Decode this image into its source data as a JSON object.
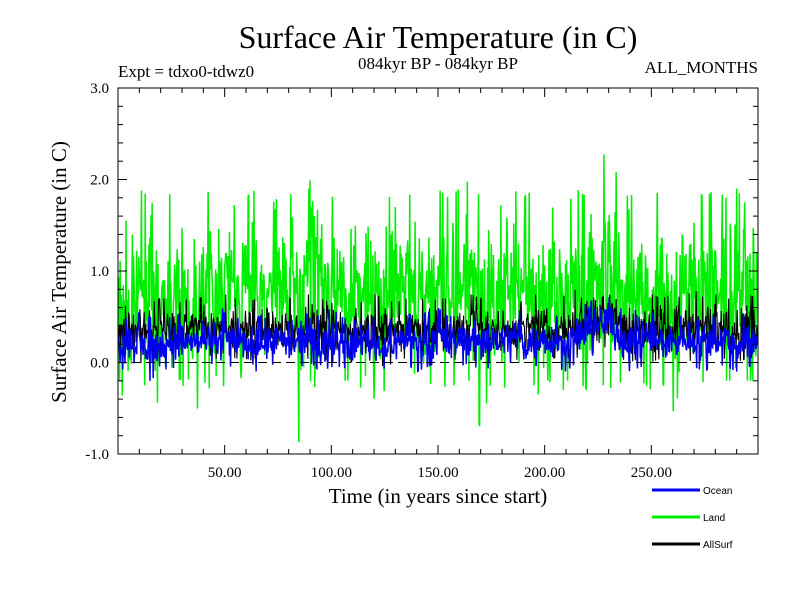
{
  "chart_data": {
    "type": "line",
    "title": "Surface Air Temperature (in C)",
    "subtitle_left": "Expt = tdxo0-tdwz0",
    "subtitle_center": "084kyr BP - 084kyr BP",
    "subtitle_right": "ALL_MONTHS",
    "xlabel": "Time (in years since start)",
    "ylabel": "Surface Air Temperature (in C)",
    "xlim": [
      0,
      300
    ],
    "ylim": [
      -1.0,
      3.0
    ],
    "xticks": [
      50,
      100,
      150,
      200,
      250
    ],
    "xtick_labels": [
      "50.00",
      "100.00",
      "150.00",
      "200.00",
      "250.00"
    ],
    "yticks": [
      -1.0,
      0.0,
      1.0,
      2.0,
      3.0
    ],
    "ytick_labels": [
      "-1.0",
      "0.0",
      "1.0",
      "2.0",
      "3.0"
    ],
    "reference_line": 0.0,
    "grid": false,
    "legend_position": "bottom-right",
    "series": [
      {
        "name": "Land",
        "color": "#00ee00",
        "x": [
          0,
          5,
          10,
          15,
          20,
          25,
          30,
          35,
          40,
          45,
          50,
          55,
          60,
          65,
          70,
          75,
          80,
          85,
          90,
          95,
          100,
          105,
          110,
          115,
          120,
          125,
          130,
          135,
          140,
          145,
          150,
          155,
          160,
          165,
          170,
          175,
          180,
          185,
          190,
          195,
          200,
          205,
          210,
          215,
          220,
          225,
          230,
          235,
          240,
          245,
          250,
          255,
          260,
          265,
          270,
          275,
          280,
          285,
          290,
          295,
          300
        ],
        "min": [
          -0.1,
          -0.75,
          -0.2,
          -0.3,
          -0.5,
          -0.15,
          -0.2,
          -0.75,
          -0.2,
          -0.35,
          -0.25,
          -0.2,
          -0.15,
          -0.2,
          -0.15,
          -0.2,
          -0.3,
          -0.9,
          -0.2,
          -0.35,
          -0.2,
          -0.2,
          -0.2,
          -0.3,
          -0.55,
          -0.3,
          -0.2,
          -0.2,
          -0.3,
          -0.25,
          -0.2,
          -0.3,
          -0.2,
          -0.2,
          -0.75,
          -0.2,
          -0.3,
          -0.2,
          -0.2,
          -0.25,
          -0.5,
          -0.6,
          -0.2,
          -0.2,
          -0.3,
          -0.2,
          -0.3,
          -0.2,
          -0.4,
          -0.2,
          -0.3,
          -0.2,
          -0.55,
          -0.2,
          -0.3,
          -0.2,
          -0.65,
          -0.2,
          -0.2,
          -0.2,
          -0.2
        ],
        "max": [
          1.4,
          1.6,
          1.9,
          1.8,
          1.5,
          1.9,
          1.7,
          1.8,
          2.0,
          1.7,
          1.9,
          1.7,
          1.8,
          1.9,
          1.7,
          1.8,
          1.8,
          2.0,
          2.7,
          1.9,
          1.8,
          1.9,
          1.7,
          1.8,
          2.0,
          1.9,
          1.7,
          1.8,
          1.9,
          1.8,
          1.9,
          1.8,
          1.9,
          2.0,
          1.8,
          1.9,
          1.7,
          1.9,
          1.8,
          1.9,
          2.0,
          1.8,
          1.7,
          1.9,
          1.8,
          2.0,
          2.5,
          1.9,
          1.8,
          2.0,
          1.8,
          1.9,
          1.7,
          1.8,
          1.9,
          1.8,
          1.9,
          1.8,
          1.9,
          1.7,
          1.8
        ]
      },
      {
        "name": "AllSurf",
        "color": "#000000",
        "x": [
          0,
          5,
          10,
          15,
          20,
          25,
          30,
          35,
          40,
          45,
          50,
          55,
          60,
          65,
          70,
          75,
          80,
          85,
          90,
          95,
          100,
          105,
          110,
          115,
          120,
          125,
          130,
          135,
          140,
          145,
          150,
          155,
          160,
          165,
          170,
          175,
          180,
          185,
          190,
          195,
          200,
          205,
          210,
          215,
          220,
          225,
          230,
          235,
          240,
          245,
          250,
          255,
          260,
          265,
          270,
          275,
          280,
          285,
          290,
          295,
          300
        ],
        "min": [
          0.0,
          0.05,
          0.0,
          -0.05,
          0.05,
          0.0,
          0.05,
          0.0,
          0.05,
          0.05,
          0.0,
          0.05,
          0.0,
          0.05,
          0.05,
          0.0,
          0.05,
          0.0,
          0.05,
          0.05,
          0.0,
          0.05,
          0.0,
          0.05,
          0.0,
          -0.05,
          0.0,
          0.05,
          0.0,
          0.05,
          0.05,
          0.0,
          0.05,
          0.0,
          0.05,
          0.0,
          0.05,
          0.05,
          0.0,
          0.05,
          0.0,
          0.05,
          0.0,
          0.05,
          0.1,
          0.1,
          0.2,
          0.05,
          0.0,
          0.05,
          0.0,
          0.05,
          0.0,
          0.05,
          0.0,
          0.05,
          0.0,
          0.05,
          0.0,
          0.05,
          0.05
        ],
        "max": [
          0.55,
          0.65,
          0.75,
          0.65,
          0.7,
          0.7,
          0.65,
          0.75,
          0.7,
          0.65,
          0.75,
          0.7,
          0.65,
          0.7,
          0.75,
          0.65,
          0.7,
          0.7,
          0.75,
          0.7,
          0.65,
          0.7,
          0.7,
          0.65,
          0.75,
          0.7,
          0.65,
          0.7,
          0.75,
          0.65,
          0.7,
          0.7,
          0.65,
          0.75,
          0.7,
          0.65,
          0.7,
          0.7,
          0.65,
          0.75,
          0.7,
          0.65,
          0.75,
          0.8,
          0.85,
          0.9,
          1.1,
          0.85,
          0.75,
          0.7,
          0.75,
          0.7,
          0.75,
          0.7,
          0.8,
          0.7,
          0.75,
          0.7,
          0.7,
          0.75,
          0.7
        ]
      },
      {
        "name": "Ocean",
        "color": "#0000ee",
        "x": [
          0,
          5,
          10,
          15,
          20,
          25,
          30,
          35,
          40,
          45,
          50,
          55,
          60,
          65,
          70,
          75,
          80,
          85,
          90,
          95,
          100,
          105,
          110,
          115,
          120,
          125,
          130,
          135,
          140,
          145,
          150,
          155,
          160,
          165,
          170,
          175,
          180,
          185,
          190,
          195,
          200,
          205,
          210,
          215,
          220,
          225,
          230,
          235,
          240,
          245,
          250,
          255,
          260,
          265,
          270,
          275,
          280,
          285,
          290,
          295,
          300
        ],
        "min": [
          -0.1,
          -0.05,
          -0.15,
          -0.2,
          -0.1,
          -0.05,
          -0.1,
          -0.05,
          0.0,
          -0.05,
          -0.1,
          0.0,
          -0.05,
          -0.1,
          -0.05,
          0.0,
          -0.1,
          -0.05,
          0.0,
          -0.1,
          -0.05,
          -0.05,
          -0.1,
          0.0,
          -0.1,
          -0.15,
          -0.05,
          0.0,
          -0.1,
          -0.05,
          0.0,
          -0.1,
          -0.05,
          0.0,
          -0.1,
          -0.05,
          0.0,
          0.0,
          -0.1,
          -0.05,
          0.0,
          -0.05,
          -0.1,
          0.0,
          0.05,
          0.1,
          0.15,
          0.0,
          -0.1,
          -0.05,
          0.0,
          -0.05,
          -0.1,
          0.0,
          -0.05,
          -0.1,
          0.0,
          -0.05,
          -0.1,
          -0.05,
          0.0
        ],
        "max": [
          0.45,
          0.5,
          0.55,
          0.5,
          0.45,
          0.5,
          0.55,
          0.5,
          0.45,
          0.55,
          0.6,
          0.5,
          0.45,
          0.5,
          0.55,
          0.5,
          0.45,
          0.5,
          0.55,
          0.5,
          0.6,
          0.5,
          0.45,
          0.55,
          0.5,
          0.45,
          0.5,
          0.55,
          0.5,
          0.55,
          0.6,
          0.5,
          0.55,
          0.5,
          0.6,
          0.55,
          0.5,
          0.6,
          0.55,
          0.5,
          0.55,
          0.5,
          0.5,
          0.6,
          0.65,
          0.7,
          0.8,
          0.6,
          0.55,
          0.6,
          0.55,
          0.5,
          0.55,
          0.5,
          0.6,
          0.55,
          0.5,
          0.55,
          0.5,
          0.55,
          0.5
        ]
      }
    ],
    "legend": [
      {
        "label": "Ocean",
        "color": "#0000ee"
      },
      {
        "label": "Land",
        "color": "#00ee00"
      },
      {
        "label": "AllSurf",
        "color": "#000000"
      }
    ]
  }
}
